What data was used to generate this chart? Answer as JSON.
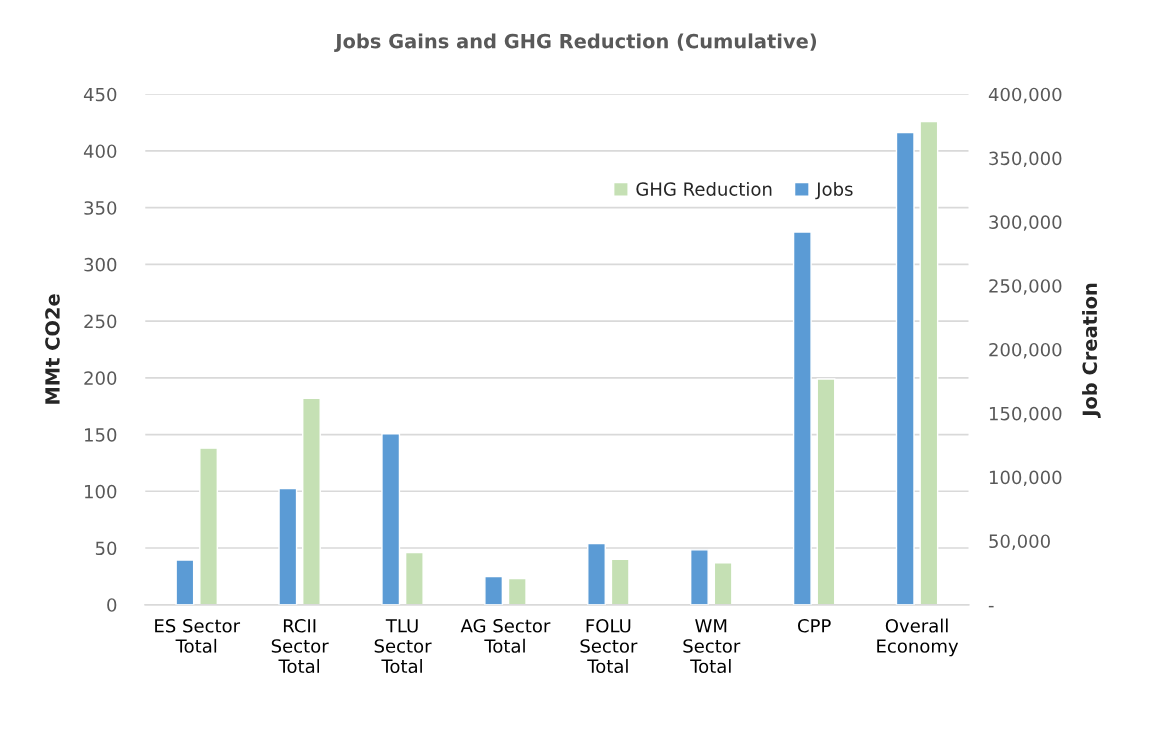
{
  "chart_data": {
    "type": "bar",
    "title": "Jobs Gains and GHG Reduction (Cumulative)",
    "categories": [
      "ES Sector\nTotal",
      "RCII\nSector\nTotal",
      "TLU\nSector\nTotal",
      "AG Sector\nTotal",
      "FOLU\nSector\nTotal",
      "WM\nSector\nTotal",
      "CPP",
      "Overall\nEconomy"
    ],
    "series": [
      {
        "name": "GHG Reduction",
        "color": "#c5e0b4",
        "axis": "y",
        "values": [
          138,
          182,
          46,
          23,
          40,
          37,
          199,
          426
        ]
      },
      {
        "name": "Jobs",
        "color": "#5b9bd5",
        "axis": "y2",
        "values": [
          35000,
          91000,
          134000,
          22000,
          48000,
          43000,
          292000,
          370000
        ]
      }
    ],
    "ylabel": "MMt CO2e",
    "y2label": "Job Creation",
    "ylim": [
      0,
      450
    ],
    "yticks": [
      0,
      50,
      100,
      150,
      200,
      250,
      300,
      350,
      400,
      450
    ],
    "y2lim": [
      0,
      400000
    ],
    "y2ticks": [
      {
        "value": 0,
        "label": "-"
      },
      {
        "value": 50000,
        "label": "50,000"
      },
      {
        "value": 100000,
        "label": "100,000"
      },
      {
        "value": 150000,
        "label": "150,000"
      },
      {
        "value": 200000,
        "label": "200,000"
      },
      {
        "value": 250000,
        "label": "250,000"
      },
      {
        "value": 300000,
        "label": "300,000"
      },
      {
        "value": 350000,
        "label": "350,000"
      },
      {
        "value": 400000,
        "label": "400,000"
      }
    ],
    "grid": "y",
    "legend": "top right"
  }
}
